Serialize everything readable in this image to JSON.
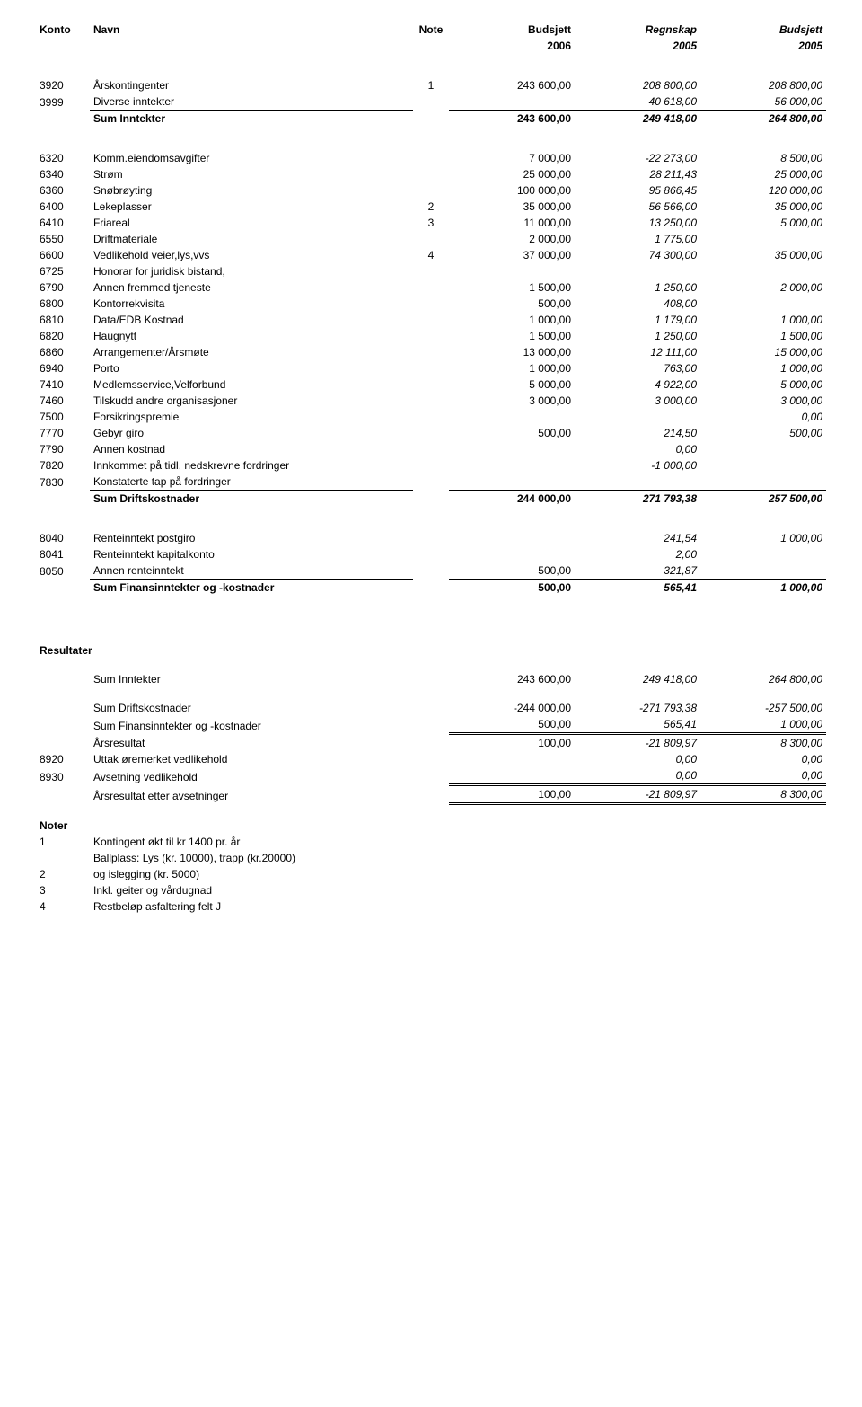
{
  "header": {
    "cols": [
      "Konto",
      "Navn",
      "Note",
      "Budsjett",
      "Regnskap",
      "Budsjett"
    ],
    "years": [
      "2006",
      "2005",
      "2005"
    ]
  },
  "inntekter": [
    {
      "konto": "3920",
      "navn": "Årskontingenter",
      "note": "1",
      "c1": "243 600,00",
      "c2": "208 800,00",
      "c3": "208 800,00",
      "italic23": true
    },
    {
      "konto": "3999",
      "navn": "Diverse inntekter",
      "note": "",
      "c1": "",
      "c2": "40 618,00",
      "c3": "56 000,00",
      "italic23": true,
      "sumline": true
    }
  ],
  "sumInntekter": {
    "label": "Sum Inntekter",
    "c1": "243 600,00",
    "c2": "249 418,00",
    "c3": "264 800,00"
  },
  "driftskost": [
    {
      "konto": "6320",
      "navn": "Komm.eiendomsavgifter",
      "c1": "7 000,00",
      "c2": "-22 273,00",
      "c3": "8 500,00"
    },
    {
      "konto": "6340",
      "navn": "Strøm",
      "c1": "25 000,00",
      "c2": "28 211,43",
      "c3": "25 000,00"
    },
    {
      "konto": "6360",
      "navn": "Snøbrøyting",
      "c1": "100 000,00",
      "c2": "95 866,45",
      "c3": "120 000,00"
    },
    {
      "konto": "6400",
      "navn": "Lekeplasser",
      "note": "2",
      "c1": "35 000,00",
      "c2": "56 566,00",
      "c3": "35 000,00"
    },
    {
      "konto": "6410",
      "navn": "Friareal",
      "note": "3",
      "c1": "11 000,00",
      "c2": "13 250,00",
      "c3": "5 000,00"
    },
    {
      "konto": "6550",
      "navn": "Driftmateriale",
      "c1": "2 000,00",
      "c2": "1 775,00",
      "c3": ""
    },
    {
      "konto": "6600",
      "navn": "Vedlikehold veier,lys,vvs",
      "note": "4",
      "c1": "37 000,00",
      "c2": "74 300,00",
      "c3": "35 000,00"
    },
    {
      "konto": "6725",
      "navn": "Honorar for juridisk bistand,",
      "c1": "",
      "c2": "",
      "c3": ""
    },
    {
      "konto": "6790",
      "navn": "Annen fremmed tjeneste",
      "c1": "1 500,00",
      "c2": "1 250,00",
      "c3": "2 000,00"
    },
    {
      "konto": "6800",
      "navn": "Kontorrekvisita",
      "c1": "500,00",
      "c2": "408,00",
      "c3": ""
    },
    {
      "konto": "6810",
      "navn": "Data/EDB Kostnad",
      "c1": "1 000,00",
      "c2": "1 179,00",
      "c3": "1 000,00"
    },
    {
      "konto": "6820",
      "navn": "Haugnytt",
      "c1": "1 500,00",
      "c2": "1 250,00",
      "c3": "1 500,00"
    },
    {
      "konto": "6860",
      "navn": "Arrangementer/Årsmøte",
      "c1": "13 000,00",
      "c2": "12 111,00",
      "c3": "15 000,00"
    },
    {
      "konto": "6940",
      "navn": "Porto",
      "c1": "1 000,00",
      "c2": "763,00",
      "c3": "1 000,00"
    },
    {
      "konto": "7410",
      "navn": "Medlemsservice,Velforbund",
      "c1": "5 000,00",
      "c2": "4 922,00",
      "c3": "5 000,00"
    },
    {
      "konto": "7460",
      "navn": "Tilskudd andre organisasjoner",
      "c1": "3 000,00",
      "c2": "3 000,00",
      "c3": "3 000,00"
    },
    {
      "konto": "7500",
      "navn": "Forsikringspremie",
      "c1": "",
      "c2": "",
      "c3": "0,00"
    },
    {
      "konto": "7770",
      "navn": "Gebyr giro",
      "c1": "500,00",
      "c2": "214,50",
      "c3": "500,00"
    },
    {
      "konto": "7790",
      "navn": "Annen kostnad",
      "c1": "",
      "c2": "0,00",
      "c3": ""
    },
    {
      "konto": "7820",
      "navn": "Innkommet på tidl. nedskrevne fordringer",
      "c1": "",
      "c2": "-1 000,00",
      "c3": ""
    },
    {
      "konto": "7830",
      "navn": "Konstaterte tap på fordringer",
      "c1": "",
      "c2": "",
      "c3": "",
      "sumline": true
    }
  ],
  "sumDriftskost": {
    "label": "Sum Driftskostnader",
    "c1": "244 000,00",
    "c2": "271 793,38",
    "c3": "257 500,00"
  },
  "finans": [
    {
      "konto": "8040",
      "navn": "Renteinntekt postgiro",
      "c1": "",
      "c2": "241,54",
      "c3": "1 000,00"
    },
    {
      "konto": "8041",
      "navn": "Renteinntekt kapitalkonto",
      "c1": "",
      "c2": "2,00",
      "c3": ""
    },
    {
      "konto": "8050",
      "navn": "Annen renteinntekt",
      "c1": "500,00",
      "c2": "321,87",
      "c3": "",
      "sumline": true
    }
  ],
  "sumFinans": {
    "label": "Sum Finansinntekter og -kostnader",
    "c1": "500,00",
    "c2": "565,41",
    "c3": "1 000,00"
  },
  "resultater": {
    "heading": "Resultater",
    "rows": [
      {
        "label": "Sum Inntekter",
        "c1": "243 600,00",
        "c2": "249 418,00",
        "c3": "264 800,00",
        "spaceAfter": true
      },
      {
        "label": "Sum Driftskostnader",
        "c1": "-244 000,00",
        "c2": "-271 793,38",
        "c3": "-257 500,00"
      },
      {
        "label": "Sum Finansinntekter og -kostnader",
        "c1": "500,00",
        "c2": "565,41",
        "c3": "1 000,00",
        "underlineNums": true
      },
      {
        "label": "Årsresultat",
        "c1": "100,00",
        "c2": "-21 809,97",
        "c3": "8 300,00",
        "dblTop": true
      },
      {
        "konto": "8920",
        "label": "Uttak øremerket vedlikehold",
        "c1": "",
        "c2": "0,00",
        "c3": "0,00"
      },
      {
        "konto": "8930",
        "label": "Avsetning vedlikehold",
        "c1": "",
        "c2": "0,00",
        "c3": "0,00",
        "underlineNums": true
      },
      {
        "label": "Årsresultat etter avsetninger",
        "c1": "100,00",
        "c2": "-21 809,97",
        "c3": "8 300,00",
        "dblTop": true,
        "dblBottom": true
      }
    ]
  },
  "noter": {
    "heading": "Noter",
    "items": [
      {
        "n": "1",
        "text": "Kontingent økt til kr 1400 pr. år"
      },
      {
        "n": "2",
        "text": "Ballplass: Lys (kr. 10000), trapp (kr.20000) og islegging (kr. 5000)",
        "multiline": true
      },
      {
        "n": "3",
        "text": "Inkl. geiter og vårdugnad"
      },
      {
        "n": "4",
        "text": "Restbeløp asfaltering felt J"
      }
    ]
  }
}
